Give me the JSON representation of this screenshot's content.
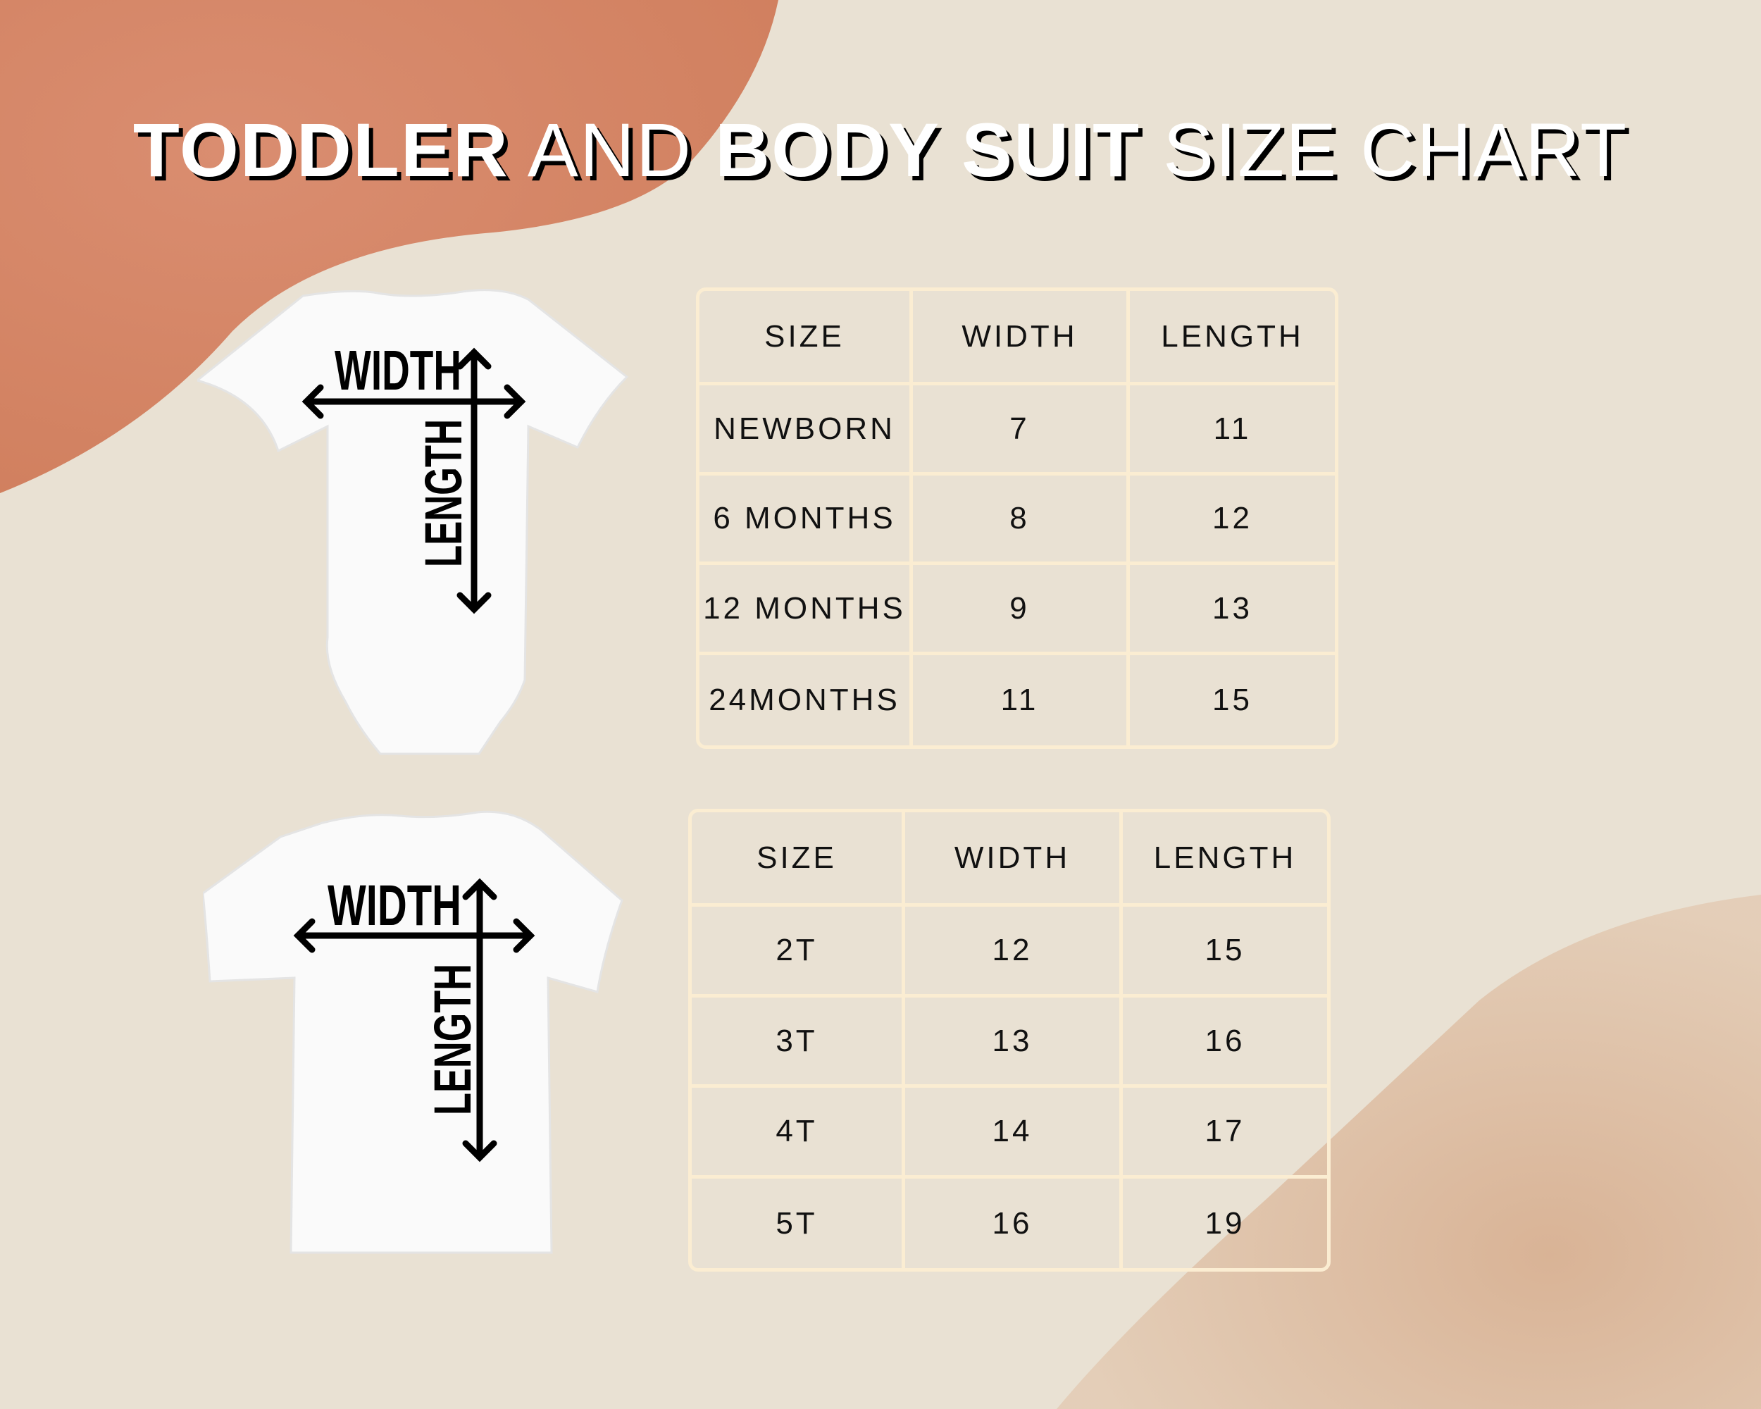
{
  "title": {
    "part1": "TODDLER",
    "part2": "AND",
    "part3": "BODY SUIT",
    "part4": "SIZE CHART"
  },
  "garment_labels": {
    "width": "WIDTH",
    "length": "LENGTH"
  },
  "colors": {
    "background": "#e9e1d3",
    "blob_top_left": "#d8876a",
    "blob_bottom_right": "#d9b497",
    "table_border": "#fbedd2"
  },
  "bodysuit_table": {
    "headers": [
      "SIZE",
      "WIDTH",
      "LENGTH"
    ],
    "rows": [
      [
        "NEWBORN",
        "7",
        "11"
      ],
      [
        "6 MONTHS",
        "8",
        "12"
      ],
      [
        "12 MONTHS",
        "9",
        "13"
      ],
      [
        "24MONTHS",
        "11",
        "15"
      ]
    ]
  },
  "toddler_table": {
    "headers": [
      "SIZE",
      "WIDTH",
      "LENGTH"
    ],
    "rows": [
      [
        "2T",
        "12",
        "15"
      ],
      [
        "3T",
        "13",
        "16"
      ],
      [
        "4T",
        "14",
        "17"
      ],
      [
        "5T",
        "16",
        "19"
      ]
    ]
  }
}
